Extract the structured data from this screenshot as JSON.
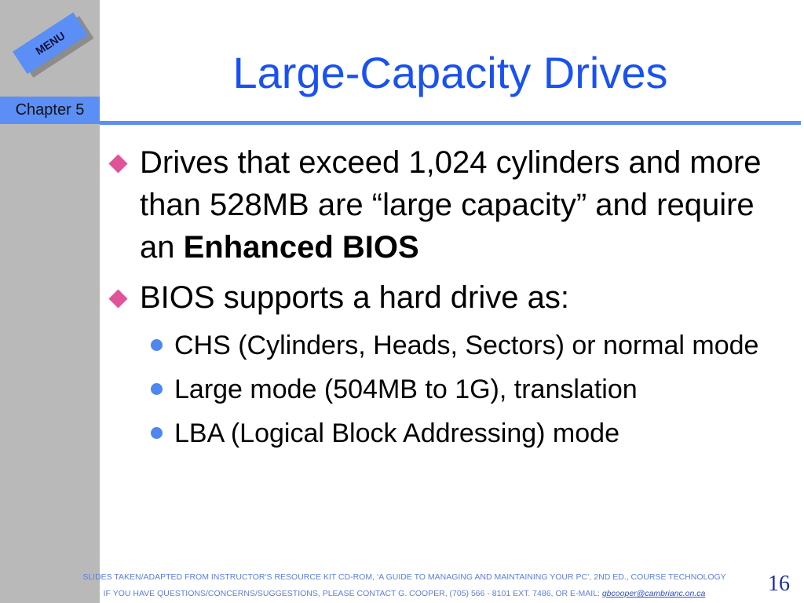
{
  "sidebar": {
    "menu_label": "MENU",
    "chapter_label": "Chapter 5"
  },
  "title": "Large-Capacity Drives",
  "bullets": [
    {
      "text_before": "Drives that exceed 1,024 cylinders and more than 528MB are “large capacity” and require an ",
      "bold": "Enhanced BIOS"
    },
    {
      "text": "BIOS supports a hard drive as:"
    }
  ],
  "sub_bullets": [
    "CHS (Cylinders, Heads, Sectors) or normal mode",
    "Large mode (504MB to 1G), translation",
    "LBA (Logical Block Addressing) mode"
  ],
  "colors": {
    "accent": "#5b8ff5",
    "title": "#1a52f0",
    "diamond_bullet": "#e0529a"
  },
  "footer": {
    "line1": "SLIDES TAKEN/ADAPTED FROM INSTRUCTOR'S RESOURCE KIT CD-ROM, ‘A GUIDE TO MANAGING AND MAINTAINING YOUR PC’, 2ND ED., COURSE TECHNOLOGY",
    "line2": "IF YOU HAVE QUESTIONS/CONCERNS/SUGGESTIONS, PLEASE CONTACT G. COOPER, (705) 566 - 8101 EXT. 7486, OR E-MAIL: ",
    "email": "gbcooper@cambrianc.on.ca"
  },
  "page_number": "16"
}
